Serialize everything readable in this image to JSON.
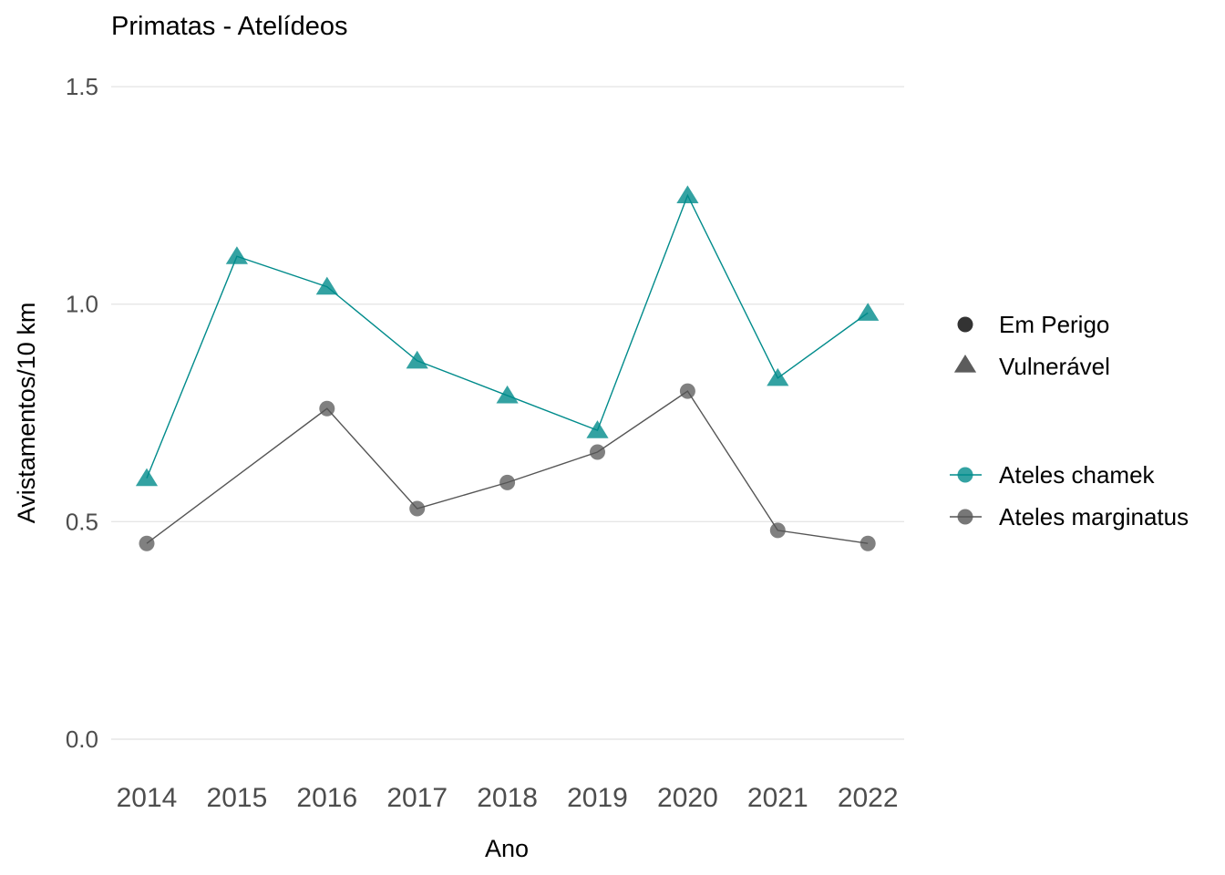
{
  "chart_data": {
    "type": "line",
    "title": "Primatas - Atelídeos",
    "xlabel": "Ano",
    "ylabel": "Avistamentos/10 km",
    "x": [
      "2014",
      "2015",
      "2016",
      "2017",
      "2018",
      "2019",
      "2020",
      "2021",
      "2022"
    ],
    "ylim": [
      0,
      1.5
    ],
    "yticks": [
      "0.0",
      "0.5",
      "1.0",
      "1.5"
    ],
    "grid": "horizontal",
    "legend_position": "right",
    "series": [
      {
        "name": "Ateles chamek",
        "status": "Vulnerável",
        "marker": "triangle",
        "color": "#008b8b",
        "values": [
          0.6,
          1.11,
          1.04,
          0.87,
          0.79,
          0.71,
          1.25,
          0.83,
          0.98
        ]
      },
      {
        "name": "Ateles marginatus",
        "status": "Em Perigo",
        "marker": "circle",
        "color": "#555555",
        "values": [
          0.45,
          null,
          0.76,
          0.53,
          0.59,
          0.66,
          0.8,
          0.48,
          0.45
        ]
      }
    ],
    "legend": {
      "shape": [
        {
          "label": "Em Perigo",
          "marker": "circle"
        },
        {
          "label": "Vulnerável",
          "marker": "triangle"
        }
      ],
      "color": [
        {
          "label": "Ateles chamek",
          "color": "#008b8b"
        },
        {
          "label": "Ateles marginatus",
          "color": "#555555"
        }
      ]
    }
  }
}
